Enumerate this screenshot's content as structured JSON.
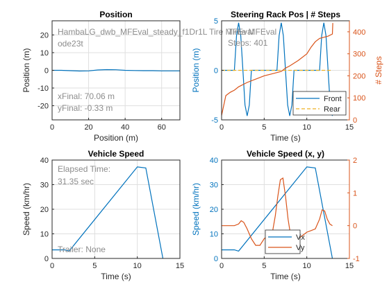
{
  "chart_data": [
    {
      "type": "line",
      "title": "Position",
      "xlabel": "Position (m)",
      "ylabel": "Position (m)",
      "xlim": [
        0,
        70
      ],
      "ylim": [
        -28,
        28
      ],
      "xticks": [
        0,
        20,
        40,
        60
      ],
      "yticks": [
        -20,
        -10,
        0,
        10,
        20
      ],
      "grid": true,
      "series": [
        {
          "color": "#0072bd",
          "x": [
            0,
            5,
            10,
            15,
            20,
            25,
            30,
            35,
            40,
            45,
            50,
            55,
            60,
            65,
            70.06
          ],
          "y": [
            0,
            0,
            -0.2,
            -0.4,
            -0.3,
            0.2,
            0.4,
            0.3,
            0,
            -0.1,
            -0.2,
            -0.2,
            -0.3,
            -0.3,
            -0.33
          ]
        }
      ],
      "annotations": [
        "HambaLG_dwb_MFEval_steady_f1Dr1L Tire MFEval",
        "ode23t",
        "xFinal: 70.06 m",
        "yFinal: -0.33 m"
      ]
    },
    {
      "type": "line",
      "title": "Steering Rack Pos | # Steps",
      "xlabel": "Time (s)",
      "ylabel": "Position (m)",
      "ylabel_right": "# Steps",
      "xlim": [
        0,
        15
      ],
      "ylim": [
        -5,
        5
      ],
      "ylim_right": [
        0,
        450
      ],
      "xticks": [
        0,
        5,
        10,
        15
      ],
      "yticks": [
        -5,
        0,
        5
      ],
      "yticks_right": [
        0,
        100,
        200,
        300,
        400
      ],
      "grid": true,
      "legend": "bottom-right",
      "series": [
        {
          "name": "Front",
          "color": "#0072bd",
          "style": "solid",
          "axis": "left",
          "x": [
            0,
            1.5,
            1.75,
            2.0,
            2.25,
            2.5,
            2.75,
            3.0,
            3.25,
            3.5,
            6.5,
            6.75,
            7.0,
            7.25,
            7.5,
            7.75,
            8.0,
            8.25,
            8.5,
            11.5,
            11.75,
            12.0,
            12.25,
            12.5,
            12.75,
            13.0
          ],
          "y": [
            0,
            0,
            3.5,
            4.8,
            3.5,
            0,
            -3.5,
            -4.6,
            -3.5,
            0,
            0,
            3.5,
            4.8,
            3.5,
            0,
            -3.5,
            -4.6,
            -3.5,
            0,
            0,
            3.5,
            4.8,
            3.5,
            0,
            -3.5,
            -4.6
          ]
        },
        {
          "name": "Rear",
          "color": "#edb120",
          "style": "dashed",
          "axis": "left",
          "x": [
            0,
            13
          ],
          "y": [
            0,
            0
          ]
        },
        {
          "color": "#d95319",
          "style": "solid",
          "axis": "right",
          "x": [
            0,
            0.5,
            1.0,
            1.5,
            2.0,
            3.0,
            4.0,
            5.0,
            6.0,
            7.0,
            7.5,
            8.0,
            9.0,
            10.0,
            10.5,
            11.0,
            11.5,
            12.0,
            12.5,
            13.0,
            13.05
          ],
          "y": [
            20,
            110,
            125,
            135,
            150,
            170,
            185,
            200,
            210,
            220,
            235,
            245,
            270,
            300,
            330,
            355,
            370,
            375,
            380,
            390,
            440
          ]
        }
      ],
      "annotations": [
        "Time MFEval",
        "Steps: 401"
      ]
    },
    {
      "type": "line",
      "title": "Vehicle Speed",
      "xlabel": "Time (s)",
      "ylabel": "Speed (km/hr)",
      "xlim": [
        0,
        15
      ],
      "ylim": [
        0,
        40
      ],
      "xticks": [
        0,
        5,
        10,
        15
      ],
      "yticks": [
        0,
        10,
        20,
        30,
        40
      ],
      "grid": true,
      "series": [
        {
          "color": "#0072bd",
          "x": [
            0,
            1.5,
            2.0,
            10.0,
            11.0,
            13.0
          ],
          "y": [
            3.5,
            3.5,
            3.0,
            37.2,
            36.8,
            0
          ]
        }
      ],
      "annotations": [
        "Elapsed Time:",
        "31.35 sec",
        "Trailer: None"
      ]
    },
    {
      "type": "line",
      "title": "Vehicle Speed (x, y)",
      "xlabel": "Time (s)",
      "ylabel": "Speed (km/hr)",
      "xlim": [
        0,
        15
      ],
      "ylim": [
        0,
        40
      ],
      "ylim_right": [
        -1,
        2
      ],
      "xticks": [
        0,
        5,
        10,
        15
      ],
      "yticks": [
        0,
        10,
        20,
        30,
        40
      ],
      "yticks_right": [
        -1,
        0,
        1,
        2
      ],
      "grid": true,
      "legend": "bottom-center",
      "series": [
        {
          "name": "Vx",
          "color": "#0072bd",
          "axis": "left",
          "x": [
            0,
            1.5,
            2.0,
            10.0,
            11.0,
            13.0
          ],
          "y": [
            3.5,
            3.5,
            3.0,
            37.2,
            36.8,
            0
          ]
        },
        {
          "name": "Vy",
          "color": "#d95319",
          "axis": "right",
          "x": [
            0,
            1.5,
            2.0,
            2.3,
            2.6,
            3.0,
            3.5,
            4.0,
            4.5,
            5.0,
            5.5,
            6.0,
            6.3,
            6.6,
            6.9,
            7.2,
            7.5,
            7.8,
            8.1,
            8.4,
            8.7,
            9.0,
            9.5,
            10.0,
            10.5,
            11.0,
            11.5,
            11.8,
            12.1,
            12.4,
            12.7,
            13.0
          ],
          "y": [
            0,
            0,
            0.05,
            0.15,
            0.1,
            -0.1,
            -0.4,
            -0.6,
            -0.6,
            -0.4,
            -0.3,
            -0.15,
            0.3,
            0.9,
            1.4,
            1.45,
            0.9,
            0.2,
            -0.3,
            -0.55,
            -0.5,
            -0.4,
            -0.3,
            -0.2,
            -0.15,
            -0.1,
            0.2,
            0.48,
            0.45,
            0.2,
            0.05,
            0
          ]
        }
      ]
    }
  ]
}
